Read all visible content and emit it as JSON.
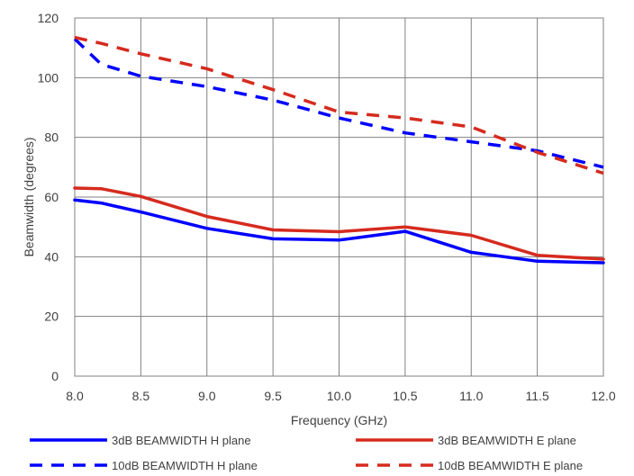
{
  "chart_data": {
    "type": "line",
    "title": "",
    "xlabel": "Frequency (GHz)",
    "ylabel": "Beamwidth (degrees)",
    "xlim": [
      8.0,
      12.0
    ],
    "ylim": [
      0,
      120
    ],
    "x_ticks": [
      "8.0",
      "8.5",
      "9.0",
      "9.5",
      "10.0",
      "10.5",
      "11.0",
      "11.5",
      "12.0"
    ],
    "y_ticks": [
      "0",
      "20",
      "40",
      "60",
      "80",
      "100",
      "120"
    ],
    "grid": true,
    "legend_position": "bottom",
    "series": [
      {
        "name": "3dB BEAMWIDTH H plane",
        "color": "#0000ff",
        "dash": "solid",
        "points": [
          [
            8.0,
            59
          ],
          [
            8.2,
            58
          ],
          [
            8.5,
            55
          ],
          [
            9.0,
            49.5
          ],
          [
            9.5,
            46
          ],
          [
            10.0,
            45.6
          ],
          [
            10.5,
            48.5
          ],
          [
            11.0,
            41.5
          ],
          [
            11.5,
            38.5
          ],
          [
            12.0,
            38
          ]
        ]
      },
      {
        "name": "3dB BEAMWIDTH E plane",
        "color": "#d52b1e",
        "dash": "solid",
        "points": [
          [
            8.0,
            63
          ],
          [
            8.2,
            62.8
          ],
          [
            8.5,
            60.2
          ],
          [
            9.0,
            53.5
          ],
          [
            9.5,
            49
          ],
          [
            10.0,
            48.4
          ],
          [
            10.5,
            50
          ],
          [
            11.0,
            47.2
          ],
          [
            11.5,
            40.5
          ],
          [
            12.0,
            39.2
          ]
        ]
      },
      {
        "name": "10dB BEAMWIDTH H plane",
        "color": "#0000ff",
        "dash": "dashed",
        "points": [
          [
            8.0,
            113
          ],
          [
            8.2,
            104.5
          ],
          [
            8.5,
            100.5
          ],
          [
            9.0,
            97
          ],
          [
            9.5,
            92.5
          ],
          [
            10.0,
            86.5
          ],
          [
            10.5,
            81.5
          ],
          [
            11.0,
            78.5
          ],
          [
            11.5,
            75.5
          ],
          [
            12.0,
            70
          ]
        ]
      },
      {
        "name": "10dB BEAMWIDTH E plane",
        "color": "#d52b1e",
        "dash": "dashed",
        "points": [
          [
            8.0,
            113.5
          ],
          [
            8.2,
            111.5
          ],
          [
            8.5,
            108
          ],
          [
            9.0,
            103
          ],
          [
            9.5,
            96
          ],
          [
            10.0,
            88.5
          ],
          [
            10.5,
            86.5
          ],
          [
            11.0,
            83.5
          ],
          [
            11.5,
            75
          ],
          [
            12.0,
            68
          ]
        ]
      }
    ]
  }
}
